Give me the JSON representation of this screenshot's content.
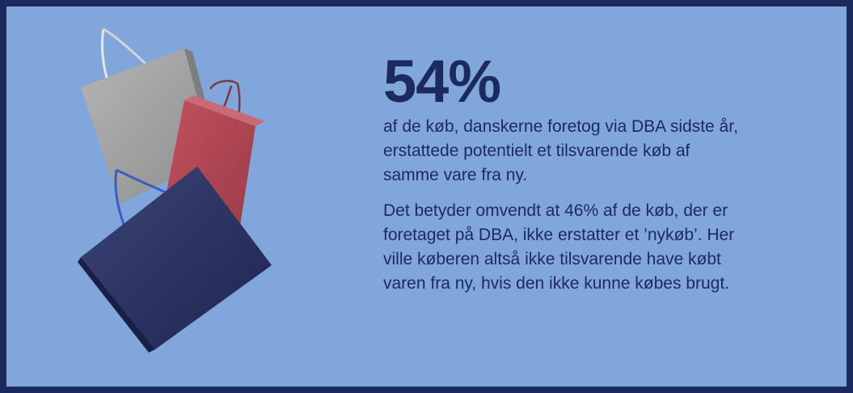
{
  "stat": {
    "value": "54%"
  },
  "paragraphs": [
    "af de køb, danskerne foretog via DBA sidste år, erstattede potentielt et tilsvarende køb af samme vare fra ny.",
    "Det betyder omvendt at 46% af de køb, der er foretaget på DBA, ikke erstatter et ’nykøb’. Her ville køberen altså ikke tilsvarende have købt varen fra ny, hvis den ikke kunne købes brugt."
  ],
  "colors": {
    "background": "#80a6dc",
    "border": "#1b2a5e",
    "text": "#1c2a5e",
    "bag_gray": "#a3a3a3",
    "bag_red": "#b34a55",
    "bag_navy": "#2a3262"
  },
  "illustration": {
    "name": "shopping-bags-illustration"
  }
}
